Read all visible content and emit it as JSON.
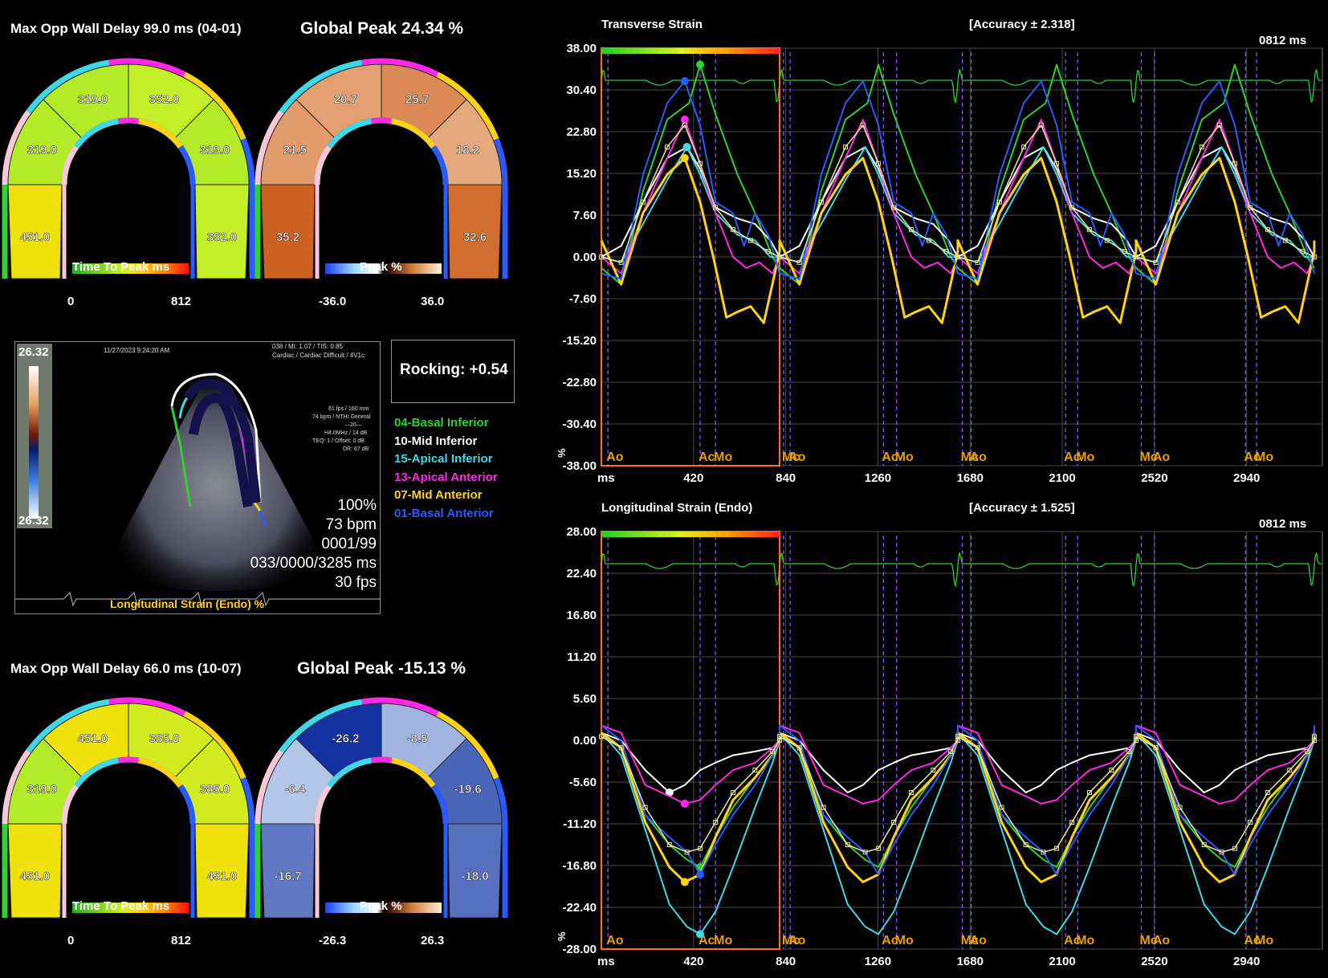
{
  "top_left": {
    "delay_label": "Max Opp Wall Delay 99.0 ms (04-01)",
    "global_peak": "Global Peak 24.34 %",
    "ttp_values": [
      "451.0",
      "319.0",
      "319.0",
      "352.0",
      "319.0",
      "352.0"
    ],
    "peak_values": [
      "35.2",
      "21.5",
      "20.7",
      "25.7",
      "18.2",
      "32.6"
    ],
    "ttp_scale_title": "Time To Peak ms",
    "ttp_min": "0",
    "ttp_max": "812",
    "peak_scale_title": "Peak %",
    "peak_min": "-36.0",
    "peak_max": "36.0"
  },
  "bottom_left": {
    "delay_label": "Max Opp Wall Delay 66.0 ms (10-07)",
    "global_peak": "Global Peak -15.13 %",
    "ttp_values": [
      "451.0",
      "319.0",
      "451.0",
      "385.0",
      "385.0",
      "451.0"
    ],
    "peak_values": [
      "-16.7",
      "-6.4",
      "-26.2",
      "-8.8",
      "-19.6",
      "-18.0"
    ],
    "ttp_scale_title": "Time To Peak ms",
    "ttp_min": "0",
    "ttp_max": "812",
    "peak_scale_title": "Peak %",
    "peak_min": "-26.3",
    "peak_max": "26.3"
  },
  "ultrasound": {
    "date": "11/27/2023 9:24:20 AM",
    "info_top": "038 / MI: 1.07 / TIS: 0.85",
    "info_top2": "Cardiac / Cardiac Difficult / 4V1c",
    "info_lines": [
      "61 fps / 160 mm",
      "74 bpm / NTHI General",
      "—20—",
      "H4.0MHz / 14 dB",
      "TEQ: 1 / Offset: 0 dB",
      "DR: 67 dB"
    ],
    "scale_top": "26.32",
    "scale_bottom": "26.32",
    "zoom": "100%",
    "bpm": "73 bpm",
    "frame": "0001/99",
    "time": "033/0000/3285 ms",
    "fps": "30 fps",
    "caption": "Longitudinal Strain (Endo) %"
  },
  "rocking": "Rocking: +0.54",
  "legend": [
    {
      "label": "04-Basal Inferior",
      "color": "#2fd02f"
    },
    {
      "label": "10-Mid Inferior",
      "color": "#ffffff"
    },
    {
      "label": "15-Apical Inferior",
      "color": "#3fd8e8"
    },
    {
      "label": "13-Apical Anterior",
      "color": "#ff28e6"
    },
    {
      "label": "07-Mid Anterior",
      "color": "#ffd21a"
    },
    {
      "label": "01-Basal Anterior",
      "color": "#2a5bff"
    }
  ],
  "chart_data": [
    {
      "type": "line",
      "title": "Transverse Strain",
      "accuracy": "[Accuracy ± 2.318]",
      "time_label": "0812 ms",
      "xlabel": "ms",
      "ylabel": "%",
      "xlim": [
        0,
        3285
      ],
      "ylim": [
        -38,
        38
      ],
      "yticks": [
        "38.00",
        "30.40",
        "22.80",
        "15.20",
        "7.60",
        "0.00",
        "-7.60",
        "-15.20",
        "-22.80",
        "-30.40",
        "-38.00"
      ],
      "xticks": [
        420,
        840,
        1260,
        1680,
        2100,
        2520,
        2940
      ],
      "markers": [
        {
          "label": "Ao",
          "t": 30
        },
        {
          "label": "Ac",
          "t": 450
        },
        {
          "label": "Mo",
          "t": 520
        },
        {
          "label": "Mc",
          "t": 830
        },
        {
          "label": "Ao",
          "t": 860
        },
        {
          "label": "Ac",
          "t": 1285
        },
        {
          "label": "Mo",
          "t": 1345
        },
        {
          "label": "Mc",
          "t": 1645
        },
        {
          "label": "Ao",
          "t": 1685
        },
        {
          "label": "Ac",
          "t": 2115
        },
        {
          "label": "Mo",
          "t": 2170
        },
        {
          "label": "Mc",
          "t": 2460
        },
        {
          "label": "Ao",
          "t": 2520
        },
        {
          "label": "Ac",
          "t": 2935
        },
        {
          "label": "Mo",
          "t": 2985
        }
      ],
      "selection": [
        0,
        812
      ],
      "series": [
        {
          "name": "04-Basal Inferior",
          "color": "#2fd02f",
          "cycle": [
            [
              0,
              -2
            ],
            [
              90,
              -5
            ],
            [
              190,
              12
            ],
            [
              300,
              25
            ],
            [
              400,
              28
            ],
            [
              450,
              35
            ],
            [
              520,
              26
            ],
            [
              620,
              15
            ],
            [
              700,
              8
            ],
            [
              780,
              0
            ],
            [
              812,
              -2
            ]
          ]
        },
        {
          "name": "10-Mid Inferior",
          "color": "#ffffff",
          "cycle": [
            [
              0,
              0
            ],
            [
              90,
              2
            ],
            [
              190,
              10
            ],
            [
              300,
              18
            ],
            [
              390,
              20
            ],
            [
              450,
              16
            ],
            [
              520,
              9
            ],
            [
              620,
              7
            ],
            [
              700,
              6
            ],
            [
              770,
              3
            ],
            [
              812,
              0
            ]
          ]
        },
        {
          "name": "15-Apical Inferior",
          "color": "#3fd8e8",
          "cycle": [
            [
              0,
              0
            ],
            [
              90,
              -1
            ],
            [
              190,
              6
            ],
            [
              300,
              14
            ],
            [
              390,
              20
            ],
            [
              450,
              15
            ],
            [
              520,
              8
            ],
            [
              620,
              4
            ],
            [
              700,
              3
            ],
            [
              770,
              0
            ],
            [
              812,
              0
            ]
          ]
        },
        {
          "name": "13-Apical Anterior",
          "color": "#ff28e6",
          "cycle": [
            [
              0,
              0
            ],
            [
              90,
              -3
            ],
            [
              190,
              8
            ],
            [
              300,
              18
            ],
            [
              380,
              25
            ],
            [
              450,
              17
            ],
            [
              520,
              8
            ],
            [
              600,
              0
            ],
            [
              660,
              -2
            ],
            [
              720,
              -1
            ],
            [
              780,
              -3
            ],
            [
              812,
              0
            ]
          ]
        },
        {
          "name": "07-Mid Anterior",
          "color": "#ffd21a",
          "cycle": [
            [
              0,
              3
            ],
            [
              90,
              -5
            ],
            [
              190,
              8
            ],
            [
              300,
              15
            ],
            [
              380,
              18
            ],
            [
              450,
              10
            ],
            [
              510,
              0
            ],
            [
              570,
              -11
            ],
            [
              620,
              -10
            ],
            [
              680,
              -9
            ],
            [
              740,
              -12
            ],
            [
              790,
              -3
            ],
            [
              812,
              1
            ]
          ]
        },
        {
          "name": "01-Basal Anterior",
          "color": "#2a5bff",
          "cycle": [
            [
              0,
              -3
            ],
            [
              90,
              -4
            ],
            [
              190,
              15
            ],
            [
              300,
              28
            ],
            [
              380,
              32
            ],
            [
              450,
              24
            ],
            [
              520,
              10
            ],
            [
              600,
              8
            ],
            [
              650,
              2
            ],
            [
              700,
              8
            ],
            [
              760,
              4
            ],
            [
              812,
              -3
            ]
          ]
        },
        {
          "name": "Average",
          "color": "#e8e8a0",
          "cycle": [
            [
              0,
              0
            ],
            [
              90,
              -1
            ],
            [
              190,
              10
            ],
            [
              300,
              20
            ],
            [
              380,
              24
            ],
            [
              450,
              17
            ],
            [
              520,
              9
            ],
            [
              600,
              5
            ],
            [
              680,
              3
            ],
            [
              760,
              1
            ],
            [
              812,
              0
            ]
          ]
        }
      ]
    },
    {
      "type": "line",
      "title": "Longitudinal Strain (Endo)",
      "accuracy": "[Accuracy ± 1.525]",
      "time_label": "0812 ms",
      "xlabel": "ms",
      "ylabel": "%",
      "xlim": [
        0,
        3285
      ],
      "ylim": [
        -28,
        28
      ],
      "yticks": [
        "28.00",
        "22.40",
        "16.80",
        "11.20",
        "5.60",
        "0.00",
        "-5.60",
        "-11.20",
        "-16.80",
        "-22.40",
        "-28.00"
      ],
      "xticks": [
        420,
        840,
        1260,
        1680,
        2100,
        2520,
        2940
      ],
      "markers": [
        {
          "label": "Ao",
          "t": 30
        },
        {
          "label": "Ac",
          "t": 450
        },
        {
          "label": "Mo",
          "t": 520
        },
        {
          "label": "Mc",
          "t": 830
        },
        {
          "label": "Ao",
          "t": 860
        },
        {
          "label": "Ac",
          "t": 1285
        },
        {
          "label": "Mo",
          "t": 1345
        },
        {
          "label": "Mc",
          "t": 1645
        },
        {
          "label": "Ao",
          "t": 1685
        },
        {
          "label": "Ac",
          "t": 2115
        },
        {
          "label": "Mo",
          "t": 2170
        },
        {
          "label": "Mc",
          "t": 2460
        },
        {
          "label": "Ao",
          "t": 2520
        },
        {
          "label": "Ac",
          "t": 2935
        },
        {
          "label": "Mo",
          "t": 2985
        }
      ],
      "selection": [
        0,
        812
      ],
      "series": [
        {
          "name": "04-Basal Inferior",
          "color": "#2fd02f",
          "cycle": [
            [
              0,
              1
            ],
            [
              90,
              -1
            ],
            [
              200,
              -10
            ],
            [
              310,
              -14
            ],
            [
              390,
              -16
            ],
            [
              450,
              -17
            ],
            [
              520,
              -13
            ],
            [
              600,
              -9
            ],
            [
              700,
              -5
            ],
            [
              780,
              -2
            ],
            [
              812,
              0
            ]
          ]
        },
        {
          "name": "10-Mid Inferior",
          "color": "#ffffff",
          "cycle": [
            [
              0,
              1
            ],
            [
              90,
              0
            ],
            [
              200,
              -4
            ],
            [
              310,
              -7
            ],
            [
              380,
              -6
            ],
            [
              450,
              -4
            ],
            [
              520,
              -3
            ],
            [
              600,
              -2
            ],
            [
              700,
              -1.5
            ],
            [
              780,
              -1
            ],
            [
              812,
              0
            ]
          ]
        },
        {
          "name": "15-Apical Inferior",
          "color": "#3fd8e8",
          "cycle": [
            [
              0,
              1
            ],
            [
              90,
              -2
            ],
            [
              200,
              -12
            ],
            [
              310,
              -22
            ],
            [
              390,
              -25
            ],
            [
              450,
              -26
            ],
            [
              520,
              -23
            ],
            [
              600,
              -17
            ],
            [
              700,
              -9
            ],
            [
              780,
              -3
            ],
            [
              812,
              0
            ]
          ]
        },
        {
          "name": "13-Apical Anterior",
          "color": "#ff28e6",
          "cycle": [
            [
              0,
              2
            ],
            [
              90,
              1
            ],
            [
              200,
              -6
            ],
            [
              310,
              -7.5
            ],
            [
              380,
              -8.5
            ],
            [
              450,
              -8
            ],
            [
              520,
              -6
            ],
            [
              600,
              -4
            ],
            [
              700,
              -3
            ],
            [
              780,
              -1
            ],
            [
              812,
              0
            ]
          ]
        },
        {
          "name": "07-Mid Anterior",
          "color": "#ffd21a",
          "cycle": [
            [
              0,
              1
            ],
            [
              90,
              -1
            ],
            [
              200,
              -11
            ],
            [
              310,
              -17
            ],
            [
              380,
              -19
            ],
            [
              450,
              -18
            ],
            [
              520,
              -13
            ],
            [
              600,
              -8
            ],
            [
              700,
              -5
            ],
            [
              780,
              -2
            ],
            [
              812,
              0
            ]
          ]
        },
        {
          "name": "01-Basal Anterior",
          "color": "#2a5bff",
          "cycle": [
            [
              0,
              2
            ],
            [
              90,
              0
            ],
            [
              200,
              -10
            ],
            [
              310,
              -13
            ],
            [
              390,
              -15
            ],
            [
              450,
              -18
            ],
            [
              520,
              -14
            ],
            [
              600,
              -10
            ],
            [
              700,
              -6
            ],
            [
              780,
              -2
            ],
            [
              812,
              0
            ]
          ]
        },
        {
          "name": "Average",
          "color": "#e8e8a0",
          "cycle": [
            [
              0,
              0.5
            ],
            [
              90,
              -1
            ],
            [
              200,
              -9
            ],
            [
              310,
              -14
            ],
            [
              390,
              -15
            ],
            [
              450,
              -14.5
            ],
            [
              520,
              -11
            ],
            [
              600,
              -7
            ],
            [
              700,
              -4
            ],
            [
              780,
              -1.5
            ],
            [
              812,
              0
            ]
          ]
        }
      ]
    }
  ]
}
